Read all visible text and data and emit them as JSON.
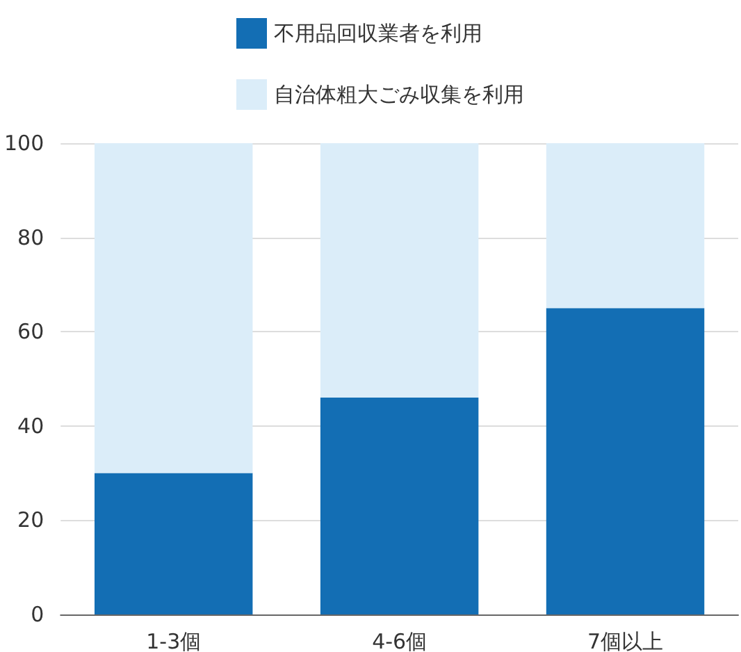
{
  "chart_data": {
    "type": "bar",
    "stacked": true,
    "categories": [
      "1-3個",
      "4-6個",
      "7個以上"
    ],
    "series": [
      {
        "name": "不用品回収業者を利用",
        "color": "#136eb4",
        "values": [
          30,
          46,
          65
        ]
      },
      {
        "name": "自治体粗大ごみ収集を利用",
        "color": "#dbedf9",
        "values": [
          70,
          54,
          35
        ]
      }
    ],
    "ylim": [
      0,
      100
    ],
    "yticks": [
      0,
      20,
      40,
      60,
      80,
      100
    ],
    "grid": "y",
    "legend": "top"
  }
}
